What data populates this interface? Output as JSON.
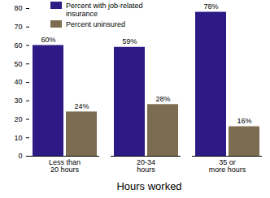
{
  "chart_data": {
    "type": "bar",
    "x_label": "Hours worked",
    "categories": [
      "Less than\n20 hours",
      "20-34\nhours",
      "35 or\nmore hours"
    ],
    "series": [
      {
        "name": "Percent with job-related insurance",
        "color": "#2e1a87",
        "values": [
          60,
          59,
          78
        ],
        "value_labels": [
          "60%",
          "59%",
          "78%"
        ]
      },
      {
        "name": "Percent uninsured",
        "color": "#7d6d50",
        "values": [
          24,
          28,
          16
        ],
        "value_labels": [
          "24%",
          "28%",
          "16%"
        ]
      }
    ],
    "ylim": [
      0,
      80
    ],
    "yticks": [
      0,
      10,
      20,
      30,
      40,
      50,
      60,
      70,
      80
    ],
    "grid": false,
    "legend": "top-left",
    "data_labels": true
  }
}
